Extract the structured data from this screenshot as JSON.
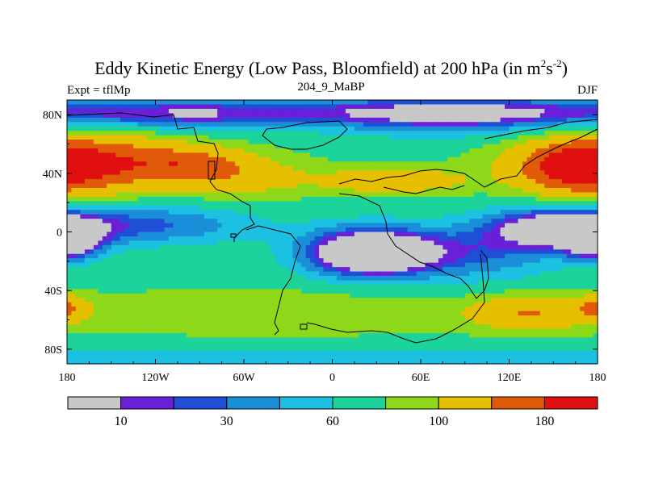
{
  "chart_data": {
    "type": "heatmap",
    "title_main": "Eddy Kinetic Energy (Low Pass, Bloomfield) at 200 hPa (in m",
    "title_sup1": "2",
    "title_mid": "s",
    "title_sup2": "-2",
    "title_end": ")",
    "left_label": "Expt = tflMp",
    "center_label": "204_9_MaBP",
    "right_label": "DJF",
    "x_range": [
      -180,
      180
    ],
    "y_range": [
      -90,
      90
    ],
    "x_ticks": [
      {
        "value": -180,
        "label": "180"
      },
      {
        "value": -120,
        "label": "120W"
      },
      {
        "value": -60,
        "label": "60W"
      },
      {
        "value": 0,
        "label": "0"
      },
      {
        "value": 60,
        "label": "60E"
      },
      {
        "value": 120,
        "label": "120E"
      },
      {
        "value": 180,
        "label": "180"
      }
    ],
    "y_ticks": [
      {
        "value": 80,
        "label": "80N"
      },
      {
        "value": 40,
        "label": "40N"
      },
      {
        "value": 0,
        "label": "0"
      },
      {
        "value": -40,
        "label": "40S"
      },
      {
        "value": -80,
        "label": "80S"
      }
    ],
    "levels": [
      10,
      20,
      30,
      45,
      60,
      80,
      100,
      140,
      180
    ],
    "colors": [
      "#c8c8c8",
      "#6a1fd8",
      "#1e4fd6",
      "#1b8ed8",
      "#1cc0e0",
      "#1cd49a",
      "#8ed81a",
      "#e6c000",
      "#e05a0a",
      "#e01010"
    ],
    "colorbar_labels": [
      {
        "value": 10,
        "label": "10"
      },
      {
        "value": 30,
        "label": "30"
      },
      {
        "value": 60,
        "label": "60"
      },
      {
        "value": 100,
        "label": "100"
      },
      {
        "value": 180,
        "label": "180"
      }
    ],
    "field": [
      {
        "lon": -165,
        "lat": 47,
        "amp": 110,
        "slon": 45,
        "slat": 13
      },
      {
        "lon": -95,
        "lat": 46,
        "amp": 55,
        "slon": 25,
        "slat": 8
      },
      {
        "lon": 165,
        "lat": 43,
        "amp": 80,
        "slon": 25,
        "slat": 12
      },
      {
        "lon": 40,
        "lat": 35,
        "amp": 55,
        "slon": 35,
        "slat": 6
      },
      {
        "lon": -60,
        "lat": 38,
        "amp": 40,
        "slon": 30,
        "slat": 10
      },
      {
        "lon": 25,
        "lat": -14,
        "amp": -110,
        "slon": 32,
        "slat": 12
      },
      {
        "lon": 155,
        "lat": 3,
        "amp": -85,
        "slon": 35,
        "slat": 10
      },
      {
        "lon": -180,
        "lat": -8,
        "amp": -80,
        "slon": 15,
        "slat": 8
      },
      {
        "lon": -120,
        "lat": 5,
        "amp": -45,
        "slon": 50,
        "slat": 10
      },
      {
        "lon": 100,
        "lat": -15,
        "amp": -40,
        "slon": 40,
        "slat": 14
      },
      {
        "lon": 135,
        "lat": -55,
        "amp": 65,
        "slon": 30,
        "slat": 8
      },
      {
        "lon": -180,
        "lat": -52,
        "amp": 55,
        "slon": 10,
        "slat": 6
      },
      {
        "lon": -40,
        "lat": -55,
        "amp": 25,
        "slon": 80,
        "slat": 10
      },
      {
        "lon": 80,
        "lat": 78,
        "amp": -40,
        "slon": 60,
        "slat": 10
      },
      {
        "lon": -100,
        "lat": 78,
        "amp": -25,
        "slon": 50,
        "slat": 8
      }
    ]
  }
}
